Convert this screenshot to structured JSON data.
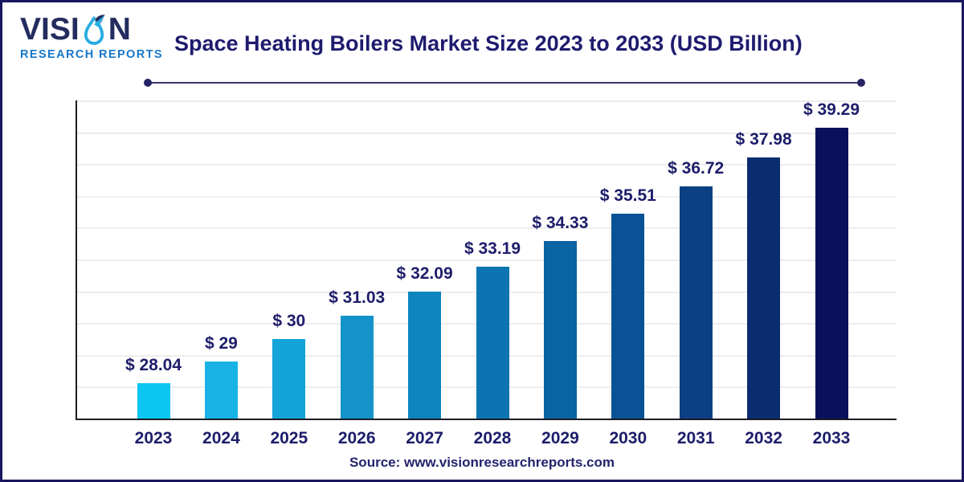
{
  "header": {
    "brand_name": "VISION",
    "logo_text_before_icon": "VISI",
    "logo_text_after_icon": "N",
    "logo_subtitle": "RESEARCH REPORTS",
    "title": "Space Heating Boilers Market Size 2023 to 2033 (USD Billion)"
  },
  "chart_data": {
    "type": "bar",
    "title": "Space Heating Boilers Market Size 2023 to 2033 (USD Billion)",
    "unit": "USD Billion",
    "categories": [
      "2023",
      "2024",
      "2025",
      "2026",
      "2027",
      "2028",
      "2029",
      "2030",
      "2031",
      "2032",
      "2033"
    ],
    "values": [
      28.04,
      29,
      30,
      31.03,
      32.09,
      33.19,
      34.33,
      35.51,
      36.72,
      37.98,
      39.29
    ],
    "value_labels": [
      "$ 28.04",
      "$ 29",
      "$ 30",
      "$ 31.03",
      "$ 32.09",
      "$ 33.19",
      "$ 34.33",
      "$ 35.51",
      "$ 36.72",
      "$ 37.98",
      "$ 39.29"
    ],
    "bar_colors": [
      "#0bc7f1",
      "#18b3e4",
      "#14a4d8",
      "#1493cb",
      "#0e85be",
      "#0c75b1",
      "#0a63a3",
      "#085295",
      "#0c4084",
      "#0a2d70",
      "#0a115c"
    ],
    "xlabel": "",
    "ylabel": "",
    "ylim": [
      26.5,
      40.5
    ],
    "grid": true,
    "gridline_orientation": "horizontal",
    "legend": false
  },
  "footer": {
    "source": "Source: www.visionresearchreports.com"
  },
  "colors": {
    "text_navy": "#1d1d6b",
    "title_navy": "#1e1b6e",
    "brand_navy": "#232c5e",
    "brand_blue": "#1778c8",
    "axis_line": "#1c1c26",
    "gridline": "#ededed",
    "frame_border": "#1a175e",
    "divider": "#38356b"
  }
}
